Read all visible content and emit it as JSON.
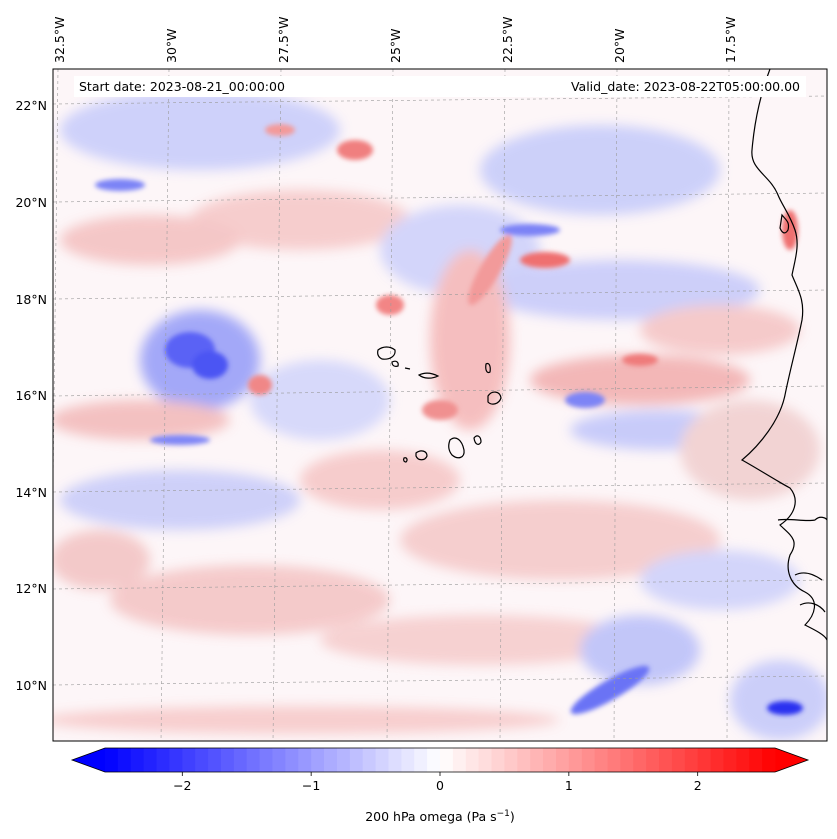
{
  "map": {
    "start_date": "Start date: 2023-08-21_00:00:00",
    "valid_date": "Valid_date: 2023-08-22T05:00:00.00",
    "lon_labels": [
      "32.5°W",
      "30°W",
      "27.5°W",
      "25°W",
      "22.5°W",
      "20°W",
      "17.5°W"
    ],
    "lat_labels": [
      "22°N",
      "20°N",
      "18°N",
      "16°N",
      "14°N",
      "12°N",
      "10°N"
    ],
    "colormap": "bwr",
    "colors": {
      "negative": "#0000ff",
      "zero": "#ffffff",
      "positive": "#ff0000",
      "coastline": "#000000",
      "grid": "#9a9a9a"
    }
  },
  "colorbar": {
    "ticks": [
      "−2",
      "−1",
      "0",
      "1",
      "2"
    ],
    "tick_values": [
      -2,
      -1,
      0,
      1,
      2
    ],
    "range": [
      -2.6,
      2.6
    ],
    "extend": "both",
    "label_main": "200 hPa omega (Pa s",
    "label_exp": "−1",
    "label_close": ")"
  }
}
